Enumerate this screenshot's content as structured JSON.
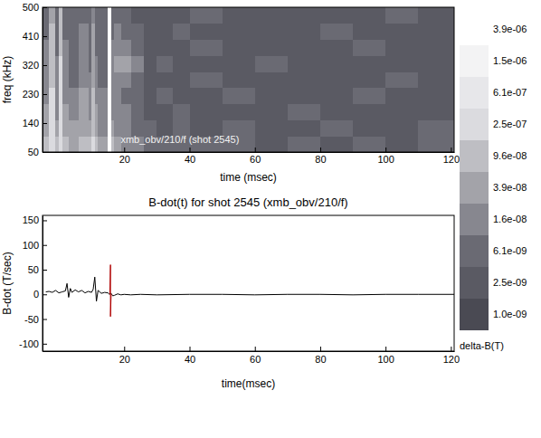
{
  "chart_data": [
    {
      "type": "heatmap",
      "xlabel": "time (msec)",
      "ylabel": "freq (kHz)",
      "annotation": "xmb_obv/210/f (shot 2545)",
      "xlim": [
        -5,
        121
      ],
      "ylim": [
        50,
        500
      ],
      "xticks": [
        20,
        40,
        60,
        80,
        100,
        120
      ],
      "yticks": [
        50,
        140,
        230,
        320,
        410,
        500
      ],
      "x_edges": [
        -5,
        -3,
        -1,
        0,
        1,
        3,
        6,
        9,
        10,
        11,
        12,
        15,
        16,
        17,
        19,
        22,
        26,
        30,
        35,
        40,
        50,
        60,
        70,
        80,
        90,
        100,
        110,
        121
      ],
      "y_edges": [
        50,
        100,
        150,
        200,
        250,
        300,
        350,
        400,
        450,
        500
      ],
      "cells": [
        [
          9.6e-08,
          2.5e-07,
          9.6e-08,
          2.5e-07,
          9.6e-08,
          3.9e-08,
          9.6e-08,
          9.6e-08,
          2.5e-07,
          9.6e-08,
          3.9e-08,
          3.9e-06,
          9.6e-08,
          3.9e-08,
          1.6e-08,
          1.6e-08,
          6.1e-09,
          6.1e-09,
          6.1e-09,
          6.1e-09,
          6.1e-09,
          2.5e-09,
          6.1e-09,
          2.5e-09,
          6.1e-09,
          2.5e-09,
          6.1e-09
        ],
        [
          3.9e-08,
          2.5e-07,
          3.9e-08,
          2.5e-07,
          3.9e-08,
          3.9e-08,
          3.9e-08,
          3.9e-08,
          9.6e-08,
          3.9e-08,
          1.6e-08,
          3.9e-06,
          3.9e-08,
          1.6e-08,
          1.6e-08,
          6.1e-09,
          6.1e-09,
          2.5e-09,
          6.1e-09,
          2.5e-09,
          6.1e-09,
          2.5e-09,
          2.5e-09,
          6.1e-09,
          2.5e-09,
          2.5e-09,
          6.1e-09
        ],
        [
          3.9e-08,
          2.5e-07,
          1.6e-08,
          2.5e-07,
          3.9e-08,
          1.6e-08,
          3.9e-08,
          1.6e-08,
          9.6e-08,
          3.9e-08,
          1.6e-08,
          3.9e-06,
          1.6e-08,
          1.6e-08,
          1.6e-08,
          6.1e-09,
          2.5e-09,
          2.5e-09,
          6.1e-09,
          2.5e-09,
          2.5e-09,
          2.5e-09,
          6.1e-09,
          2.5e-09,
          2.5e-09,
          2.5e-09,
          2.5e-09
        ],
        [
          1.6e-08,
          2.5e-07,
          1.6e-08,
          2.5e-07,
          1.6e-08,
          1.6e-08,
          3.9e-08,
          1.6e-08,
          9.6e-08,
          1.6e-08,
          1.6e-08,
          3.9e-06,
          1.6e-08,
          1.6e-08,
          6.1e-09,
          6.1e-09,
          2.5e-09,
          6.1e-09,
          2.5e-09,
          2.5e-09,
          6.1e-09,
          2.5e-09,
          2.5e-09,
          2.5e-09,
          6.1e-09,
          2.5e-09,
          2.5e-09
        ],
        [
          1.6e-08,
          9.6e-08,
          1.6e-08,
          2.5e-07,
          1.6e-08,
          6.1e-09,
          1.6e-08,
          1.6e-08,
          3.9e-08,
          1.6e-08,
          6.1e-09,
          3.9e-06,
          1.6e-08,
          1.6e-08,
          1.6e-08,
          6.1e-09,
          2.5e-09,
          2.5e-09,
          2.5e-09,
          6.1e-09,
          2.5e-09,
          2.5e-09,
          2.5e-09,
          2.5e-09,
          2.5e-09,
          6.1e-09,
          2.5e-09
        ],
        [
          1.6e-08,
          9.6e-08,
          1.6e-08,
          2.5e-07,
          1.6e-08,
          6.1e-09,
          1.6e-08,
          6.1e-09,
          3.9e-08,
          1.6e-08,
          6.1e-09,
          3.9e-06,
          1.6e-08,
          3.9e-08,
          3.9e-08,
          1.6e-08,
          2.5e-09,
          6.1e-09,
          2.5e-09,
          2.5e-09,
          2.5e-09,
          6.1e-09,
          2.5e-09,
          2.5e-09,
          2.5e-09,
          2.5e-09,
          2.5e-09
        ],
        [
          1.6e-08,
          9.6e-08,
          6.1e-09,
          9.6e-08,
          1.6e-08,
          6.1e-09,
          1.6e-08,
          6.1e-09,
          3.9e-08,
          6.1e-09,
          6.1e-09,
          3.9e-06,
          1.6e-08,
          1.6e-08,
          1.6e-08,
          6.1e-09,
          2.5e-09,
          2.5e-09,
          2.5e-09,
          6.1e-09,
          2.5e-09,
          2.5e-09,
          2.5e-09,
          2.5e-09,
          6.1e-09,
          2.5e-09,
          2.5e-09
        ],
        [
          6.1e-09,
          9.6e-08,
          6.1e-09,
          9.6e-08,
          6.1e-09,
          6.1e-09,
          1.6e-08,
          6.1e-09,
          3.9e-08,
          6.1e-09,
          6.1e-09,
          3.9e-06,
          6.1e-09,
          1.6e-08,
          6.1e-09,
          6.1e-09,
          2.5e-09,
          2.5e-09,
          6.1e-09,
          2.5e-09,
          2.5e-09,
          2.5e-09,
          2.5e-09,
          6.1e-09,
          2.5e-09,
          2.5e-09,
          2.5e-09
        ],
        [
          6.1e-09,
          3.9e-08,
          6.1e-09,
          9.6e-08,
          6.1e-09,
          6.1e-09,
          6.1e-09,
          6.1e-09,
          1.6e-08,
          6.1e-09,
          6.1e-09,
          3.9e-06,
          6.1e-09,
          6.1e-09,
          6.1e-09,
          2.5e-09,
          2.5e-09,
          2.5e-09,
          2.5e-09,
          6.1e-09,
          2.5e-09,
          2.5e-09,
          2.5e-09,
          2.5e-09,
          2.5e-09,
          6.1e-09,
          2.5e-09
        ]
      ],
      "colorbar": {
        "label": "delta-B(T)",
        "range": [
          1e-09,
          3.9e-06
        ],
        "ticks": [
          {
            "value": 3.9e-06,
            "label": "3.9e-06"
          },
          {
            "value": 1.5e-06,
            "label": "1.5e-06"
          },
          {
            "value": 6.1e-07,
            "label": "6.1e-07"
          },
          {
            "value": 2.5e-07,
            "label": "2.5e-07"
          },
          {
            "value": 9.6e-08,
            "label": "9.6e-08"
          },
          {
            "value": 3.9e-08,
            "label": "3.9e-08"
          },
          {
            "value": 1.6e-08,
            "label": "1.6e-08"
          },
          {
            "value": 6.1e-09,
            "label": "6.1e-09"
          },
          {
            "value": 2.5e-09,
            "label": "2.5e-09"
          },
          {
            "value": 1e-09,
            "label": "1.0e-09"
          }
        ]
      }
    },
    {
      "type": "line",
      "title": "B-dot(t) for shot 2545 (xmb_obv/210/f)",
      "xlabel": "time(msec)",
      "ylabel": "B-dot (T/sec)",
      "xlim": [
        -5,
        121
      ],
      "ylim": [
        -115,
        160
      ],
      "xticks": [
        20,
        40,
        60,
        80,
        100,
        120
      ],
      "yticks": [
        -100,
        -50,
        0,
        50,
        100,
        150
      ],
      "series": [
        {
          "color": "#000000",
          "x": [
            -4,
            -3,
            -2,
            -1,
            0,
            1,
            2,
            2.5,
            3,
            3.5,
            4,
            5,
            6,
            7,
            8,
            9,
            10,
            10.5,
            11,
            11.5,
            12,
            13,
            14,
            15,
            15.5,
            16,
            16.5,
            17,
            18,
            19,
            20,
            22,
            25,
            30,
            40,
            50,
            60,
            70,
            80,
            90,
            100,
            110,
            121
          ],
          "values": [
            5,
            6,
            4,
            8,
            3,
            5,
            7,
            22,
            -6,
            12,
            4,
            9,
            5,
            8,
            3,
            6,
            4,
            10,
            35,
            -14,
            8,
            2,
            4,
            3,
            0,
            2,
            -3,
            -2,
            1,
            -1,
            0,
            -1,
            0,
            -1,
            0,
            0,
            -1,
            0,
            0,
            -1,
            0,
            0,
            0
          ]
        },
        {
          "color": "#b00000",
          "x": [
            15.6,
            15.8,
            15.8,
            16.0
          ],
          "values": [
            0,
            60,
            -45,
            0
          ]
        }
      ]
    }
  ]
}
